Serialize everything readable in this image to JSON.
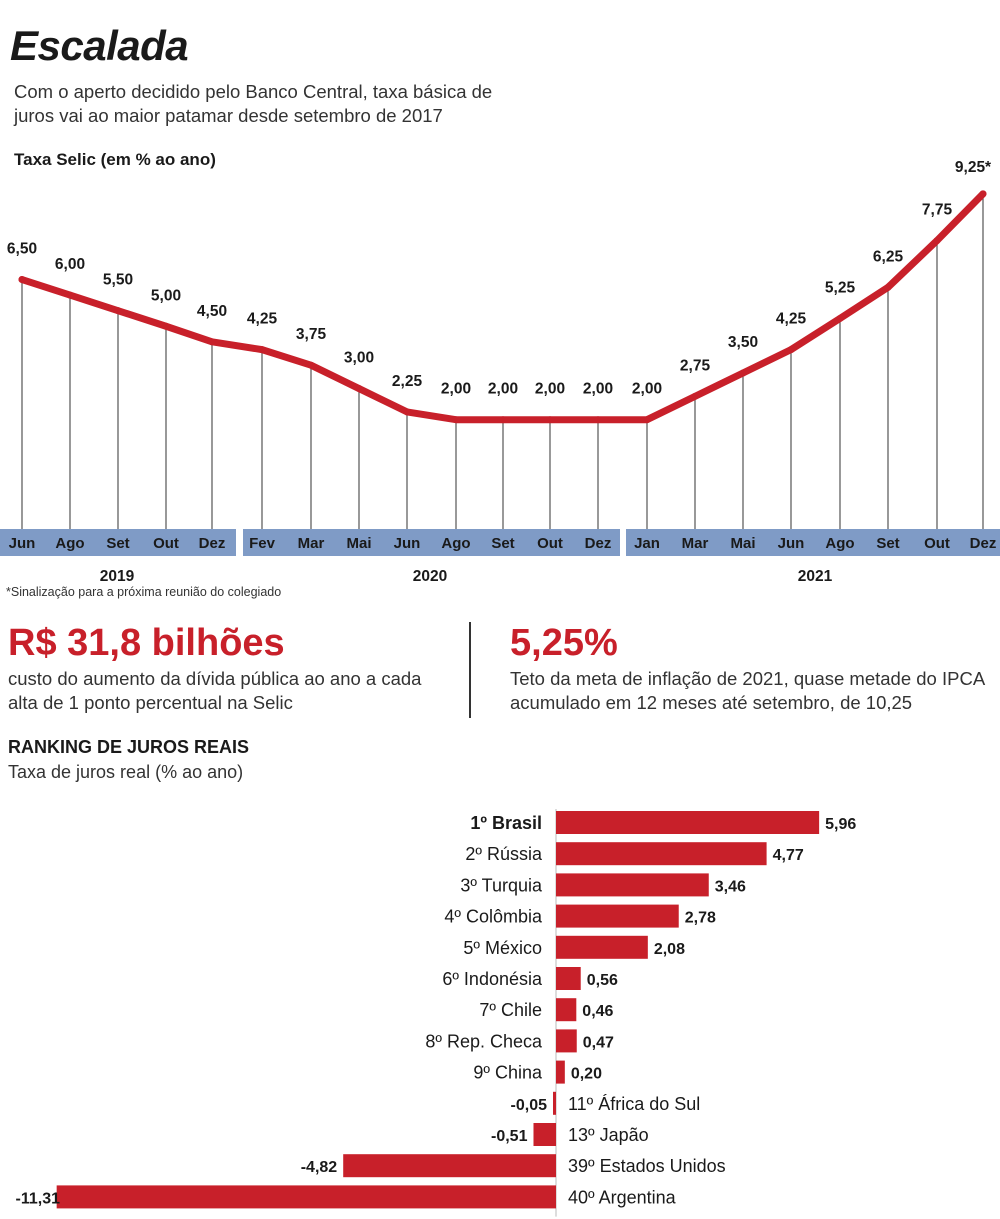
{
  "header": {
    "title": "Escalada",
    "subtitle": "Com o aperto decidido pelo Banco Central, taxa básica de juros vai ao maior patamar desde setembro de 2017",
    "chart_label": "Taxa Selic (em % ao ano)",
    "footnote": "*Sinalização para a próxima reunião do colegiado"
  },
  "stats": {
    "left": {
      "value": "R$ 31,8 bilhões",
      "text": "custo do aumento da dívida pública ao ano a cada alta de 1 ponto percentual na Selic"
    },
    "right": {
      "value": "5,25%",
      "text": "Teto da meta de inflação de 2021, quase metade do IPCA acumulado em 12 meses até setembro, de 10,25"
    }
  },
  "ranking": {
    "title": "RANKING DE JUROS REAIS",
    "subtitle": "Taxa de juros real (% ao ano)"
  },
  "colors": {
    "red": "#c8202a",
    "axis_blue": "#7f9bc6"
  },
  "chart_data": [
    {
      "type": "line",
      "title": "Taxa Selic (em % ao ano)",
      "categories": [
        "Jun",
        "Ago",
        "Set",
        "Out",
        "Dez",
        "Fev",
        "Mar",
        "Mai",
        "Jun",
        "Ago",
        "Set",
        "Out",
        "Dez",
        "Jan",
        "Mar",
        "Mai",
        "Jun",
        "Ago",
        "Set",
        "Out",
        "Dez"
      ],
      "years": [
        {
          "label": "2019",
          "start": 0,
          "end": 4
        },
        {
          "label": "2020",
          "start": 5,
          "end": 12
        },
        {
          "label": "2021",
          "start": 13,
          "end": 20
        }
      ],
      "values": [
        6.5,
        6.0,
        5.5,
        5.0,
        4.5,
        4.25,
        3.75,
        3.0,
        2.25,
        2.0,
        2.0,
        2.0,
        2.0,
        2.0,
        2.75,
        3.5,
        4.25,
        5.25,
        6.25,
        7.75,
        9.25
      ],
      "labels": [
        "6,50",
        "6,00",
        "5,50",
        "5,00",
        "4,50",
        "4,25",
        "3,75",
        "3,00",
        "2,25",
        "2,00",
        "2,00",
        "2,00",
        "2,00",
        "2,00",
        "2,75",
        "3,50",
        "4,25",
        "5,25",
        "6,25",
        "7,75",
        "9,25*"
      ],
      "ylim": [
        0,
        10
      ]
    },
    {
      "type": "bar",
      "orientation": "horizontal",
      "title": "RANKING DE JUROS REAIS",
      "categories": [
        "1º Brasil",
        "2º Rússia",
        "3º Turquia",
        "4º Colômbia",
        "5º México",
        "6º Indonésia",
        "7º Chile",
        "8º Rep. Checa",
        "9º China",
        "11º África do Sul",
        "13º Japão",
        "39º Estados Unidos",
        "40º Argentina"
      ],
      "values": [
        5.96,
        4.77,
        3.46,
        2.78,
        2.08,
        0.56,
        0.46,
        0.47,
        0.2,
        -0.05,
        -0.51,
        -4.82,
        -11.31
      ],
      "labels": [
        "5,96",
        "4,77",
        "3,46",
        "2,78",
        "2,08",
        "0,56",
        "0,46",
        "0,47",
        "0,20",
        "-0,05",
        "-0,51",
        "-4,82",
        "-11,31"
      ]
    }
  ]
}
